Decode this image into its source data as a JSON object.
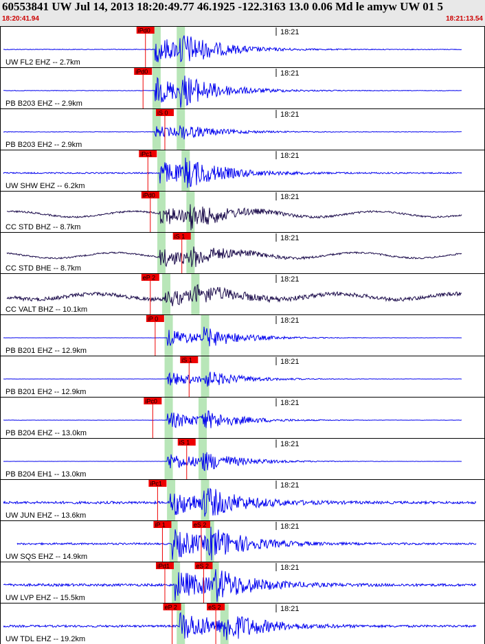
{
  "header": {
    "title": "60553841 UW Jul 14, 2013 18:20:49.77   46.1925 -122.3163 13.0 0.06 Md le amyw UW 01   5",
    "start_time": "18:20:41.94",
    "end_time": "18:21:13.54"
  },
  "time_tick_label": "18:21",
  "colors": {
    "trace_blue": "#0000ee",
    "trace_dark": "#1a0a4a",
    "pick_box": "#ee0000",
    "pick_text": "#000000",
    "band_green": "#b8e6b8",
    "header_bg": "#e8e8e8",
    "red_text": "#cc0000"
  },
  "channels": [
    {
      "label": "UW FL2 EHZ -- 2.7km",
      "color": "blue",
      "picks": [
        "iPd0"
      ],
      "p_shade": 0.32,
      "s_shade": 0.37,
      "noise": 0.08,
      "amp": 0.9
    },
    {
      "label": "PB B203 EHZ -- 2.9km",
      "color": "blue",
      "picks": [
        "iPd0"
      ],
      "p_shade": 0.32,
      "s_shade": 0.37,
      "noise": 0.06,
      "amp": 0.9
    },
    {
      "label": "PB B203 EH2 -- 2.9km",
      "color": "blue",
      "picks": [
        "iS 0"
      ],
      "p_shade": 0.32,
      "s_shade": 0.37,
      "noise": 0.06,
      "amp": 0.4
    },
    {
      "label": "UW SHW EHZ -- 6.2km",
      "color": "blue",
      "picks": [
        "iPc1"
      ],
      "p_shade": 0.33,
      "s_shade": 0.38,
      "noise": 0.16,
      "amp": 0.8
    },
    {
      "label": "CC STD BHZ -- 8.7km",
      "color": "dark",
      "picks": [
        "iPd0"
      ],
      "p_shade": 0.33,
      "s_shade": 0.39,
      "noise": 0.2,
      "amp": 0.7
    },
    {
      "label": "CC STD BHE -- 8.7km",
      "color": "dark",
      "picks": [
        "iS 1"
      ],
      "p_shade": 0.33,
      "s_shade": 0.39,
      "noise": 0.18,
      "amp": 0.6
    },
    {
      "label": "CC VALT BHZ -- 10.1km",
      "color": "dark",
      "picks": [
        "eP 2"
      ],
      "p_shade": 0.34,
      "s_shade": 0.4,
      "noise": 0.45,
      "amp": 0.5
    },
    {
      "label": "PB B201 EHZ -- 12.9km",
      "color": "blue",
      "picks": [
        "iP 0"
      ],
      "p_shade": 0.345,
      "s_shade": 0.42,
      "noise": 0.02,
      "amp": 0.6
    },
    {
      "label": "PB B201 EH2 -- 12.9km",
      "color": "blue",
      "picks": [
        "iS 1"
      ],
      "p_shade": 0.345,
      "s_shade": 0.42,
      "noise": 0.02,
      "amp": 0.5
    },
    {
      "label": "PB B204 EHZ -- 13.0km",
      "color": "blue",
      "picks": [
        "iPc0"
      ],
      "p_shade": 0.345,
      "s_shade": 0.415,
      "noise": 0.03,
      "amp": 0.6
    },
    {
      "label": "PB B204 EH1 -- 13.0km",
      "color": "blue",
      "picks": [
        "iS 1"
      ],
      "p_shade": 0.345,
      "s_shade": 0.415,
      "noise": 0.02,
      "amp": 0.6
    },
    {
      "label": "UW JUN EHZ -- 13.6km",
      "color": "blue",
      "picks": [
        "iPc1"
      ],
      "p_shade": 0.35,
      "s_shade": 0.42,
      "noise": 0.3,
      "amp": 0.9
    },
    {
      "label": "UW SQS EHZ -- 14.9km",
      "color": "blue",
      "picks": [
        "iP 1",
        "eS 2"
      ],
      "p_shade": 0.355,
      "s_shade": 0.43,
      "noise": 0.22,
      "amp": 1.0
    },
    {
      "label": "UW LVP EHZ -- 15.5km",
      "color": "blue",
      "picks": [
        "iPd1",
        "eS 2"
      ],
      "p_shade": 0.36,
      "s_shade": 0.44,
      "noise": 0.3,
      "amp": 1.0
    },
    {
      "label": "UW TDL EHZ -- 19.2km",
      "color": "blue",
      "picks": [
        "eP 2",
        "eS 2"
      ],
      "p_shade": 0.37,
      "s_shade": 0.46,
      "noise": 0.25,
      "amp": 1.0
    }
  ]
}
